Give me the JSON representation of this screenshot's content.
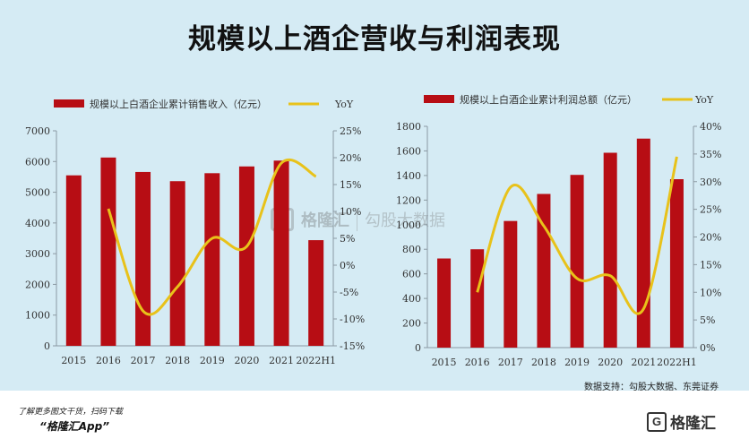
{
  "title": "规模以上酒企营收与利润表现",
  "source": "数据支持：勾股大数据、东莞证券",
  "footer": {
    "line1": "了解更多图文干货，扫码下载",
    "line2": "“格隆汇App”",
    "logo_text": "格隆汇"
  },
  "watermark": {
    "brand": "格隆汇",
    "brand2": "勾股大数据"
  },
  "colors": {
    "bar": "#b70d14",
    "line": "#e8c21a",
    "background": "#d5ebf4"
  },
  "chart_data": [
    {
      "type": "bar",
      "categories": [
        "2015",
        "2016",
        "2017",
        "2018",
        "2019",
        "2020",
        "2021",
        "2022H1"
      ],
      "series": [
        {
          "name": "规模以上白酒企业累计销售收入（亿元）",
          "kind": "bar",
          "axis": "left",
          "values": [
            5550,
            6130,
            5660,
            5360,
            5620,
            5840,
            6030,
            3440
          ]
        },
        {
          "name": "YoY",
          "kind": "line",
          "axis": "right",
          "values": [
            null,
            10.5,
            -8.5,
            -4,
            5,
            3.5,
            19,
            16.5
          ]
        }
      ],
      "ylim": [
        0,
        7000
      ],
      "yticks": [
        "0",
        "1000",
        "2000",
        "3000",
        "4000",
        "5000",
        "6000",
        "7000"
      ],
      "y2lim": [
        -15,
        25
      ],
      "y2ticks": [
        "-15%",
        "-10%",
        "-5%",
        "0%",
        "5%",
        "10%",
        "15%",
        "20%",
        "25%"
      ]
    },
    {
      "type": "bar",
      "categories": [
        "2015",
        "2016",
        "2017",
        "2018",
        "2019",
        "2020",
        "2021",
        "2022H1"
      ],
      "series": [
        {
          "name": "规模以上白酒企业累计利润总额（亿元）",
          "kind": "bar",
          "axis": "left",
          "values": [
            725,
            800,
            1030,
            1250,
            1405,
            1585,
            1700,
            1370
          ]
        },
        {
          "name": "YoY",
          "kind": "line",
          "axis": "right",
          "values": [
            null,
            10,
            29,
            22,
            12.5,
            13,
            7,
            34.5
          ]
        }
      ],
      "ylim": [
        0,
        1800
      ],
      "yticks": [
        "0",
        "200",
        "400",
        "600",
        "800",
        "1000",
        "1200",
        "1400",
        "1600",
        "1800"
      ],
      "y2lim": [
        0,
        40
      ],
      "y2ticks": [
        "0%",
        "5%",
        "10%",
        "15%",
        "20%",
        "25%",
        "30%",
        "35%",
        "40%"
      ]
    }
  ]
}
